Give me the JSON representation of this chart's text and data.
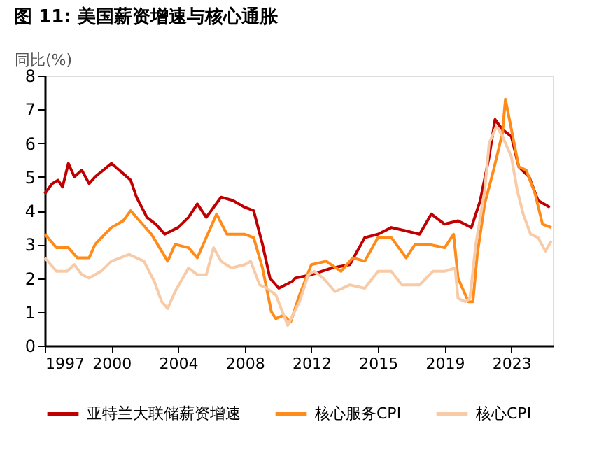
{
  "chart_data": {
    "type": "line",
    "title": "图 11: 美国薪资增速与核心通胀",
    "ylabel": "同比(%)",
    "xlim": [
      "1997-01",
      "2025-08"
    ],
    "ylim": [
      0,
      8
    ],
    "yticks": [
      0,
      1,
      2,
      3,
      4,
      5,
      6,
      7,
      8
    ],
    "xticks": [
      {
        "value": "1997-01",
        "label": "1997"
      },
      {
        "value": "2000-10",
        "label": "2000"
      },
      {
        "value": "2004-07",
        "label": "2004"
      },
      {
        "value": "2008-04",
        "label": "2008"
      },
      {
        "value": "2012-01",
        "label": "2012"
      },
      {
        "value": "2015-10",
        "label": "2015"
      },
      {
        "value": "2019-07",
        "label": "2019"
      },
      {
        "value": "2023-04",
        "label": "2023"
      }
    ],
    "grid": false,
    "legend": "bottom",
    "marker": "none",
    "line_style": "solid",
    "series": [
      {
        "name": "亚特兰大联储薪资增速",
        "color": "#c00000",
        "x": [
          "1997-01",
          "1997-06",
          "1997-10",
          "1998-01",
          "1998-05",
          "1998-09",
          "1999-02",
          "1999-07",
          "1999-11",
          "2000-10",
          "2001-06",
          "2001-11",
          "2002-03",
          "2002-10",
          "2003-04",
          "2003-10",
          "2004-07",
          "2005-02",
          "2005-08",
          "2006-02",
          "2006-12",
          "2007-08",
          "2008-04",
          "2008-10",
          "2009-04",
          "2009-09",
          "2010-03",
          "2010-12",
          "2011-02",
          "2012-01",
          "2013-03",
          "2014-03",
          "2015-01",
          "2015-10",
          "2016-07",
          "2017-05",
          "2018-02",
          "2018-10",
          "2019-07",
          "2020-04",
          "2021-01",
          "2021-07",
          "2022-01",
          "2022-05",
          "2022-10",
          "2023-04",
          "2023-09",
          "2024-04",
          "2024-10",
          "2025-06"
        ],
        "values": [
          4.5,
          4.8,
          4.9,
          4.7,
          5.4,
          5.0,
          5.2,
          4.8,
          5.0,
          5.4,
          5.1,
          4.9,
          4.4,
          3.8,
          3.6,
          3.3,
          3.5,
          3.8,
          4.2,
          3.8,
          4.4,
          4.3,
          4.1,
          4.0,
          3.0,
          2.0,
          1.7,
          1.9,
          2.0,
          2.1,
          2.3,
          2.4,
          3.2,
          3.3,
          3.5,
          3.4,
          3.3,
          3.9,
          3.6,
          3.7,
          3.5,
          4.3,
          5.6,
          6.7,
          6.4,
          6.2,
          5.3,
          5.0,
          4.3,
          4.1
        ]
      },
      {
        "name": "核心服务CPI",
        "color": "#ff8c1a",
        "x": [
          "1997-01",
          "1997-09",
          "1998-05",
          "1998-11",
          "1999-07",
          "1999-11",
          "2000-10",
          "2001-06",
          "2001-11",
          "2002-05",
          "2003-01",
          "2003-12",
          "2004-05",
          "2005-02",
          "2005-08",
          "2006-04",
          "2006-09",
          "2007-04",
          "2008-04",
          "2008-10",
          "2009-04",
          "2009-10",
          "2010-01",
          "2010-06",
          "2010-11",
          "2011-05",
          "2012-01",
          "2012-11",
          "2013-09",
          "2014-05",
          "2015-01",
          "2015-10",
          "2016-07",
          "2017-05",
          "2017-11",
          "2018-08",
          "2019-07",
          "2020-01",
          "2020-04",
          "2020-11",
          "2021-02",
          "2021-05",
          "2021-10",
          "2022-04",
          "2022-10",
          "2022-12",
          "2023-05",
          "2023-09",
          "2024-02",
          "2024-08",
          "2025-01",
          "2025-07"
        ],
        "values": [
          3.3,
          2.9,
          2.9,
          2.6,
          2.6,
          3.0,
          3.5,
          3.7,
          4.0,
          3.7,
          3.3,
          2.5,
          3.0,
          2.9,
          2.6,
          3.4,
          3.9,
          3.3,
          3.3,
          3.2,
          2.3,
          1.0,
          0.8,
          0.9,
          0.7,
          1.5,
          2.4,
          2.5,
          2.2,
          2.6,
          2.5,
          3.2,
          3.2,
          2.6,
          3.0,
          3.0,
          2.9,
          3.3,
          2.0,
          1.3,
          1.3,
          2.7,
          4.2,
          5.2,
          6.3,
          7.3,
          6.2,
          5.3,
          5.2,
          4.5,
          3.6,
          3.5
        ]
      },
      {
        "name": "核心CPI",
        "color": "#f8cba8",
        "x": [
          "1997-01",
          "1997-09",
          "1998-04",
          "1998-09",
          "1999-02",
          "1999-07",
          "2000-03",
          "2000-10",
          "2001-10",
          "2002-08",
          "2003-03",
          "2003-08",
          "2003-12",
          "2004-05",
          "2005-02",
          "2005-08",
          "2006-02",
          "2006-07",
          "2006-12",
          "2007-07",
          "2008-04",
          "2008-08",
          "2009-02",
          "2009-07",
          "2010-01",
          "2010-09",
          "2011-05",
          "2011-11",
          "2012-03",
          "2012-09",
          "2013-05",
          "2014-03",
          "2015-01",
          "2015-10",
          "2016-07",
          "2017-02",
          "2018-02",
          "2018-11",
          "2019-07",
          "2020-02",
          "2020-04",
          "2020-09",
          "2020-12",
          "2021-04",
          "2021-10",
          "2022-01",
          "2022-06",
          "2022-10",
          "2023-04",
          "2023-08",
          "2023-12",
          "2024-05",
          "2024-10",
          "2025-03",
          "2025-07"
        ],
        "values": [
          2.6,
          2.2,
          2.2,
          2.4,
          2.1,
          2.0,
          2.2,
          2.5,
          2.7,
          2.5,
          1.9,
          1.3,
          1.1,
          1.6,
          2.3,
          2.1,
          2.1,
          2.9,
          2.5,
          2.3,
          2.4,
          2.5,
          1.8,
          1.7,
          1.5,
          0.6,
          1.3,
          2.1,
          2.2,
          2.0,
          1.6,
          1.8,
          1.7,
          2.2,
          2.2,
          1.8,
          1.8,
          2.2,
          2.2,
          2.3,
          1.4,
          1.3,
          1.4,
          3.0,
          4.6,
          6.0,
          6.5,
          6.2,
          5.6,
          4.6,
          3.9,
          3.3,
          3.2,
          2.8,
          3.1
        ]
      }
    ]
  }
}
